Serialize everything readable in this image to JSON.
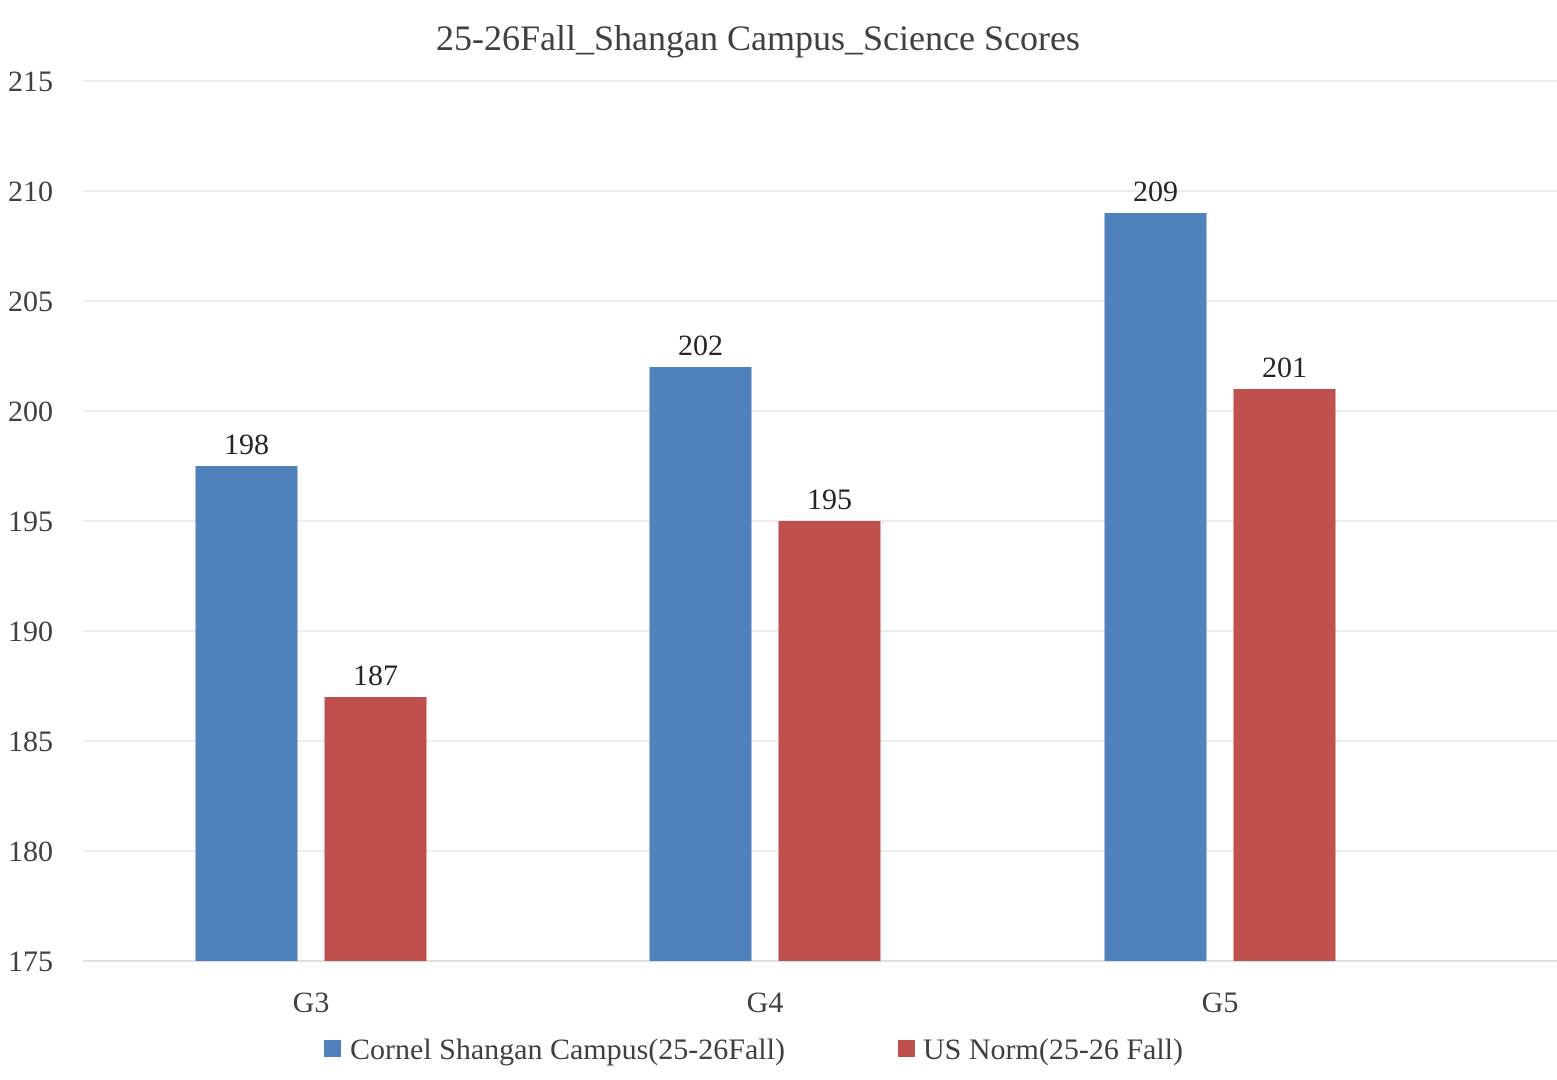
{
  "chart_data": {
    "type": "bar",
    "title": "25-26Fall_Shangan Campus_Science Scores",
    "categories": [
      "G3",
      "G4",
      "G5"
    ],
    "series": [
      {
        "name": "Cornel Shangan Campus(25-26Fall)",
        "values": [
          197.5,
          202,
          209
        ],
        "labels": [
          "198",
          "202",
          "209"
        ],
        "color": "#4f81bd"
      },
      {
        "name": "US Norm(25-26 Fall)",
        "values": [
          187,
          195,
          201
        ],
        "labels": [
          "187",
          "195",
          "201"
        ],
        "color": "#c0504d"
      }
    ],
    "ylim": [
      175,
      215
    ],
    "yticks": [
      "175",
      "180",
      "185",
      "190",
      "195",
      "200",
      "205",
      "210",
      "215"
    ],
    "xlabel": "",
    "ylabel": "",
    "grid": true,
    "legend": "bottom"
  }
}
